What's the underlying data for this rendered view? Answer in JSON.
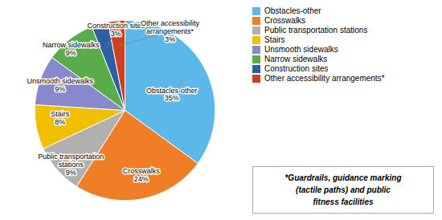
{
  "chart_data": {
    "type": "pie",
    "categories": [
      "Obstacles-other",
      "Crosswalks",
      "Public transportation\nstations",
      "Stairs",
      "Unsmooth sidewalks",
      "Narrow sidewalks",
      "Construction sites",
      "Other accessibility\narrangements*"
    ],
    "values": [
      35,
      24,
      9,
      8,
      9,
      9,
      3,
      3
    ],
    "value_labels": [
      "35%",
      "24%",
      "9%",
      "8%",
      "9%",
      "9%",
      "3%",
      "3%"
    ],
    "data_labels": true,
    "colors": [
      "#5BB8E8",
      "#F07E27",
      "#B0B0B0",
      "#F0C000",
      "#8888CC",
      "#5AAB4A",
      "#2E5FA3",
      "#D04020"
    ],
    "legend": "right",
    "legend_labels": [
      "Obstacles-other",
      "Crosswalks",
      "Public transportation stations",
      "Stairs",
      "Unsmooth sidewalks",
      "Narrow sidewalks",
      "Construction sites",
      "Other accessibility arrangements*"
    ],
    "footnote": "*Guardrails, guidance marking\n(tactile paths) and public\nfitness facilities"
  }
}
